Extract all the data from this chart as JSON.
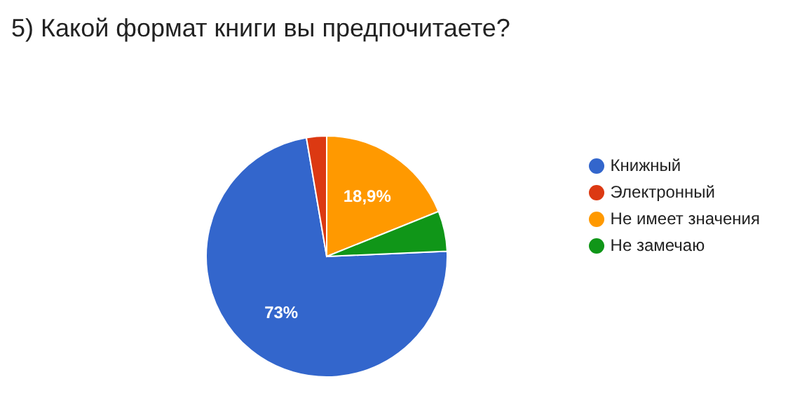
{
  "chart_data": {
    "type": "pie",
    "title": "5) Какой формат книги вы предпочитаете?",
    "categories": [
      "Книжный",
      "Электронный",
      "Не имеет значения",
      "Не замечаю"
    ],
    "values": [
      73,
      2.7,
      18.9,
      5.4
    ],
    "colors": [
      "#3366cc",
      "#dc3912",
      "#ff9900",
      "#109618"
    ],
    "value_labels": [
      "73%",
      null,
      "18,9%",
      null
    ],
    "legend": "right"
  }
}
